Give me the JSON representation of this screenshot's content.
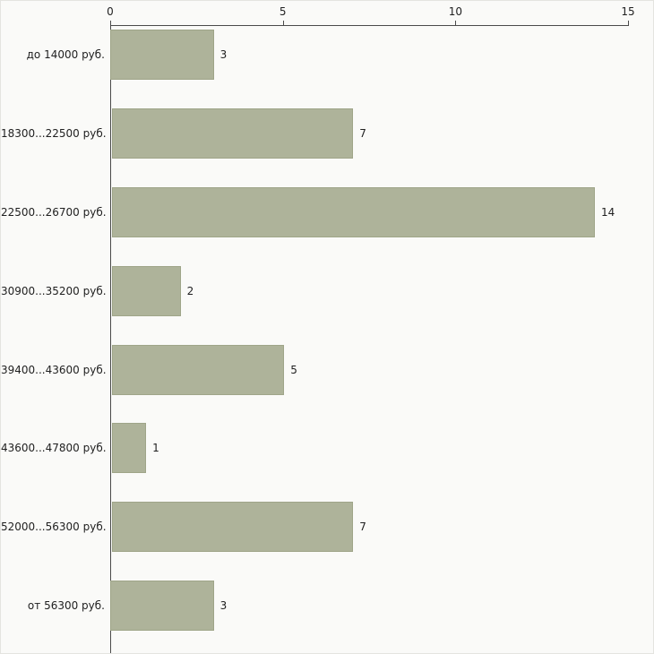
{
  "chart_data": {
    "type": "bar",
    "orientation": "horizontal",
    "title": "",
    "xlabel": "",
    "ylabel": "",
    "categories": [
      "до 14000 руб.",
      "18300...22500 руб.",
      "22500...26700 руб.",
      "30900...35200 руб.",
      "39400...43600 руб.",
      "43600...47800 руб.",
      "52000...56300 руб.",
      "от 56300 руб."
    ],
    "values": [
      3,
      7,
      14,
      2,
      5,
      1,
      7,
      3
    ],
    "x_ticks": [
      0,
      5,
      10,
      15
    ],
    "xlim": [
      0,
      15
    ],
    "grid": false,
    "legend": "none",
    "colors": {
      "bar": "#aeb39a",
      "bar_border": "#9fa589",
      "axis": "#4a4a4a",
      "text": "#1f1f1f",
      "background": "#fafaf8",
      "frame": "#e4e4e0"
    }
  }
}
